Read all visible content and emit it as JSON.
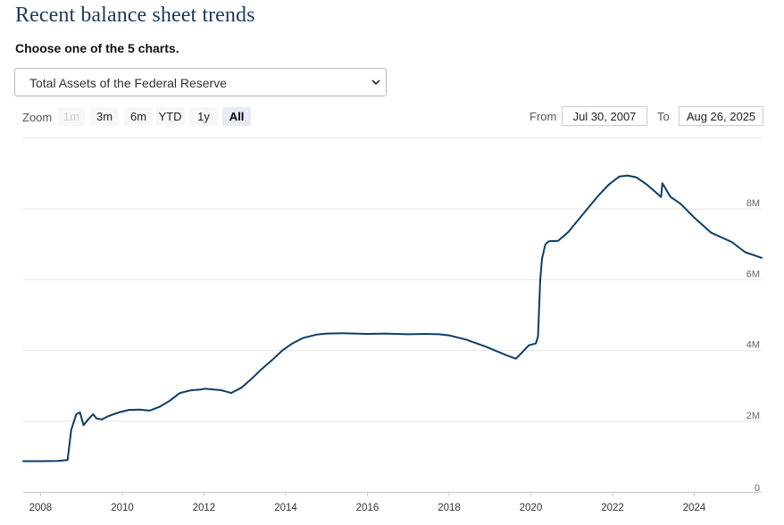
{
  "header": {
    "title": "Recent balance sheet trends",
    "prompt": "Choose one of the 5 charts."
  },
  "selector": {
    "value": "Total Assets of the Federal Reserve"
  },
  "zoom": {
    "label": "Zoom",
    "buttons": [
      {
        "label": "1m",
        "state": "disabled"
      },
      {
        "label": "3m",
        "state": "normal"
      },
      {
        "label": "6m",
        "state": "normal"
      },
      {
        "label": "YTD",
        "state": "normal"
      },
      {
        "label": "1y",
        "state": "normal"
      },
      {
        "label": "All",
        "state": "selected"
      }
    ]
  },
  "range": {
    "from_label": "From",
    "from_value": "Jul 30, 2007",
    "to_label": "To",
    "to_value": "Aug 26, 2025"
  },
  "colors": {
    "line": "#0d3d66",
    "title": "#1d3a5c",
    "grid": "#e6e6e6"
  },
  "chart_data": {
    "type": "line",
    "title": "",
    "xlabel": "",
    "ylabel": "",
    "x_ticks": [
      "2008",
      "2010",
      "2012",
      "2014",
      "2016",
      "2018",
      "2020",
      "2022",
      "2024"
    ],
    "y_ticks": [
      "0",
      "2M",
      "4M",
      "6M",
      "8M"
    ],
    "y_tick_values": [
      0,
      2000000,
      4000000,
      6000000,
      8000000
    ],
    "xlim": [
      "2007-07-30",
      "2025-08-26"
    ],
    "ylim": [
      0,
      10000000
    ],
    "grid": true,
    "legend": "none",
    "series": [
      {
        "x": [
          "2007-07-30",
          "2008-01-01",
          "2008-06-01",
          "2008-08-30",
          "2008-10-01",
          "2008-11-15",
          "2008-12-18",
          "2009-01-20",
          "2009-03-01",
          "2009-04-15",
          "2009-05-15",
          "2009-07-01",
          "2009-09-01",
          "2009-12-01",
          "2010-03-01",
          "2010-06-01",
          "2010-09-01",
          "2010-12-01",
          "2011-03-01",
          "2011-06-01",
          "2011-09-01",
          "2011-12-01",
          "2012-01-15",
          "2012-06-01",
          "2012-09-01",
          "2012-12-01",
          "2013-03-01",
          "2013-06-01",
          "2013-09-01",
          "2013-12-01",
          "2014-03-01",
          "2014-06-01",
          "2014-10-01",
          "2015-01-01",
          "2015-06-01",
          "2016-01-01",
          "2016-06-01",
          "2017-01-01",
          "2017-06-01",
          "2017-10-01",
          "2018-01-01",
          "2018-06-01",
          "2018-12-01",
          "2019-06-01",
          "2019-08-20",
          "2019-10-01",
          "2019-12-15",
          "2020-02-15",
          "2020-03-05",
          "2020-03-25",
          "2020-04-10",
          "2020-05-10",
          "2020-06-10",
          "2020-09-01",
          "2020-12-01",
          "2021-03-01",
          "2021-06-01",
          "2021-09-01",
          "2021-12-01",
          "2022-03-01",
          "2022-05-15",
          "2022-08-01",
          "2022-11-01",
          "2023-02-01",
          "2023-03-10",
          "2023-03-22",
          "2023-06-01",
          "2023-09-01",
          "2024-01-01",
          "2024-06-01",
          "2024-12-01",
          "2025-04-01",
          "2025-08-26"
        ],
        "y": [
          870000,
          870000,
          880000,
          905000,
          1750000,
          2200000,
          2250000,
          1890000,
          2050000,
          2200000,
          2080000,
          2050000,
          2150000,
          2250000,
          2320000,
          2330000,
          2300000,
          2410000,
          2580000,
          2800000,
          2870000,
          2900000,
          2920000,
          2880000,
          2800000,
          2950000,
          3200000,
          3480000,
          3730000,
          4000000,
          4200000,
          4350000,
          4450000,
          4480000,
          4490000,
          4470000,
          4480000,
          4460000,
          4470000,
          4460000,
          4430000,
          4310000,
          4100000,
          3860000,
          3770000,
          3900000,
          4150000,
          4200000,
          4400000,
          6000000,
          6600000,
          7000000,
          7090000,
          7100000,
          7350000,
          7700000,
          8050000,
          8400000,
          8700000,
          8920000,
          8950000,
          8900000,
          8700000,
          8450000,
          8340000,
          8730000,
          8350000,
          8150000,
          7760000,
          7330000,
          7070000,
          6780000,
          6620000
        ]
      }
    ]
  }
}
